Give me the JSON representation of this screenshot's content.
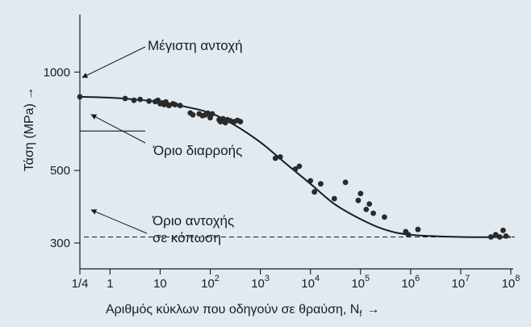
{
  "chart_data": {
    "type": "scatter",
    "xscale": "log",
    "yscale": "log",
    "xlabel": "Αριθμός κύκλων που οδηγούν σε θραύση, N",
    "xlabel_sub": "f",
    "xlabel_arrow": "→",
    "ylabel": "Τάση (MPa) →",
    "xlim": [
      0.25,
      100000000
    ],
    "ylim": [
      250,
      1500
    ],
    "x_ticks": [
      {
        "value": 0.25,
        "base": "1/4",
        "exp": ""
      },
      {
        "value": 1,
        "base": "1",
        "exp": ""
      },
      {
        "value": 10,
        "base": "10",
        "exp": ""
      },
      {
        "value": 100,
        "base": "10",
        "exp": "2"
      },
      {
        "value": 1000,
        "base": "10",
        "exp": "3"
      },
      {
        "value": 10000,
        "base": "10",
        "exp": "4"
      },
      {
        "value": 100000,
        "base": "10",
        "exp": "5"
      },
      {
        "value": 1000000,
        "base": "10",
        "exp": "6"
      },
      {
        "value": 10000000,
        "base": "10",
        "exp": "7"
      },
      {
        "value": 100000000,
        "base": "10",
        "exp": "8"
      }
    ],
    "y_ticks": [
      {
        "value": 300,
        "label": "300"
      },
      {
        "value": 500,
        "label": "500"
      },
      {
        "value": 1000,
        "label": "1000"
      }
    ],
    "curve": [
      [
        0.25,
        840
      ],
      [
        1,
        835
      ],
      [
        3,
        825
      ],
      [
        10,
        810
      ],
      [
        30,
        785
      ],
      [
        100,
        750
      ],
      [
        300,
        690
      ],
      [
        1000,
        610
      ],
      [
        3000,
        530
      ],
      [
        10000,
        455
      ],
      [
        30000,
        395
      ],
      [
        100000,
        355
      ],
      [
        300000,
        330
      ],
      [
        1000000,
        318
      ],
      [
        10000000,
        313
      ],
      [
        100000000,
        313
      ]
    ],
    "points": [
      [
        0.25,
        840
      ],
      [
        2,
        830
      ],
      [
        3,
        820
      ],
      [
        4,
        825
      ],
      [
        6,
        815
      ],
      [
        8,
        812
      ],
      [
        9,
        820
      ],
      [
        10,
        800
      ],
      [
        11,
        805
      ],
      [
        12,
        795
      ],
      [
        13,
        810
      ],
      [
        15,
        790
      ],
      [
        18,
        800
      ],
      [
        20,
        795
      ],
      [
        25,
        790
      ],
      [
        40,
        750
      ],
      [
        45,
        740
      ],
      [
        60,
        745
      ],
      [
        70,
        735
      ],
      [
        80,
        740
      ],
      [
        90,
        748
      ],
      [
        100,
        725
      ],
      [
        110,
        745
      ],
      [
        150,
        715
      ],
      [
        160,
        705
      ],
      [
        180,
        720
      ],
      [
        200,
        700
      ],
      [
        220,
        715
      ],
      [
        250,
        710
      ],
      [
        300,
        705
      ],
      [
        350,
        712
      ],
      [
        400,
        705
      ],
      [
        2000,
        545
      ],
      [
        2500,
        550
      ],
      [
        5000,
        505
      ],
      [
        6000,
        515
      ],
      [
        10000,
        465
      ],
      [
        12000,
        430
      ],
      [
        16000,
        455
      ],
      [
        30000,
        410
      ],
      [
        50000,
        460
      ],
      [
        90000,
        405
      ],
      [
        100000,
        425
      ],
      [
        130000,
        380
      ],
      [
        150000,
        395
      ],
      [
        180000,
        370
      ],
      [
        300000,
        360
      ],
      [
        800000,
        325
      ],
      [
        900000,
        318
      ],
      [
        1400000,
        330
      ],
      [
        40000000,
        313
      ],
      [
        50000000,
        318
      ],
      [
        60000000,
        313
      ],
      [
        70000000,
        328
      ],
      [
        80000000,
        315
      ]
    ],
    "reference_lines": [
      {
        "kind": "ultimate_strength",
        "value": 840
      },
      {
        "kind": "yield_strength",
        "value": 660,
        "x_range": [
          0.25,
          5
        ]
      },
      {
        "kind": "fatigue_limit",
        "value": 313
      }
    ],
    "annotations": [
      {
        "text": "Μέγιστη αντοχή"
      },
      {
        "text": "Όριο διαρροής"
      },
      {
        "text": "Όριο αντοχής",
        "text2": "σε κόπωση"
      }
    ]
  }
}
